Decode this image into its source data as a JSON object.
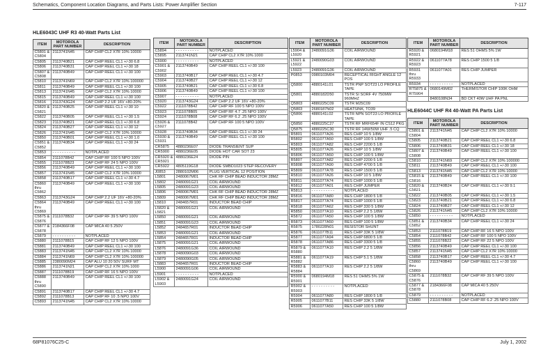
{
  "header": {
    "left": "Schematics, Component Location Diagrams, and Parts Lists: Power Amplifier Section",
    "right": "7-117"
  },
  "footer": {
    "left": "68P81076C25-C",
    "right": "July 1, 2002"
  },
  "columns": [
    "ITEM",
    "MOTOROLA PART NUMBER",
    "DESCRIPTION"
  ],
  "titles": {
    "r3": "HLE6043C UHF R3 40-Watt Parts List",
    "r4": "HLE6044C UHF R4 40-Watt PA Parts List"
  },
  "t1": [
    [
      "C5801 & C5804",
      "2113741N45",
      "CAP CHIP CL2 X7R 10% 10000"
    ],
    [
      "C5805",
      "2113740B21",
      "CAP CHIP REEL CL1 +/-30 6.8"
    ],
    [
      "C5806",
      "2113740B31",
      "CAP CHIP REEL CL1 +/-30 18"
    ],
    [
      "C5807 & C5808",
      "2113740B49",
      "CAP CHIP REEL CL1 +/-30 100"
    ],
    [
      "C5810",
      "2113741N69",
      "CAP CHIP CL2 X7R 10% 100000"
    ],
    [
      "C5811",
      "2113740B49",
      "CAP CHIP REEL CL1 +/-30 100"
    ],
    [
      "C5813",
      "2113741N45",
      "CAP CHIP CL2 X7R 10% 10000"
    ],
    [
      "C5815",
      "2113740B49",
      "CAP CHIP REEL CL1 +/-30 100"
    ],
    [
      "C5816",
      "2113743G24",
      "CAP CHIP 2.2 UF 16V +80-20%"
    ],
    [
      "C5820 & C5821",
      "2113740B25",
      "CAP CHIP REEL CL1 +/-30 10"
    ],
    [
      "C5822",
      "2113740B05",
      "CAP CHIP REEL CL1 +/-30 1.5"
    ],
    [
      "C5823",
      "2113740B21",
      "CAP CHIP REEL CL1 +/-30 6.8"
    ],
    [
      "C5824",
      "2113740B27",
      "CAP CHIP REEL CL1 +/-30 12"
    ],
    [
      "C5826",
      "2113741N45",
      "CAP CHIP CL2 X7R 10% 10000"
    ],
    [
      "C5850",
      "2113740B01",
      "CAP CHIP REEL CL1 +/-30 1.0"
    ],
    [
      "C5851 & C5852",
      "2113740B34",
      "CAP CHIP REEL CL1 +/-30 24"
    ],
    [
      "C5853",
      "- - - - - - - - - -",
      "NOTPLACED"
    ],
    [
      "C5854",
      "2111078B42",
      "CAP CHIP RF 100 5 NPO 100V"
    ],
    [
      "C5855",
      "2111078B23",
      "CAP CHIP RF 24 5 NPO 100V"
    ],
    [
      "C5856",
      "2113740B49",
      "CAP CHIP REEL CL1 +/-30 100"
    ],
    [
      "C5857",
      "2113741N45",
      "CAP CHIP CL2 X7R 10% 10000"
    ],
    [
      "C5858",
      "2113740B17",
      "CAP CHIP REEL CL1 +/-30 4.7"
    ],
    [
      "C5860 thru C5862",
      "2113740B49",
      "CAP CHIP REEL CL1 +/-30 100"
    ],
    [
      "C5863",
      "2113743G24",
      "CAP CHIP 2.2 UF 16V +80-20%"
    ],
    [
      "C5864 thru C5869",
      "2113740B49",
      "CAP CHIP REEL CL1 +/-30 100"
    ],
    [
      "C5875 & C5876",
      "2111078B32",
      "CAP CHIP RF 39 5 NPO 100V"
    ],
    [
      "C5877 & C5878",
      "2184366F08",
      "CAP MICA 40 5 250V"
    ],
    [
      "C5879",
      "- - - - - - - - - -",
      "NOTPLACED"
    ],
    [
      "C5880",
      "2111078B15",
      "CAP CHIP RF 12 5 NPO 100V"
    ],
    [
      "C5881",
      "2113740B49",
      "CAP CHIP REEL CL1 +/-30 100"
    ],
    [
      "C5883",
      "2113741N45",
      "CAP CHIP CL2 X7R 10% 10000"
    ],
    [
      "C5884",
      "2113741N69",
      "CAP CHIP CL2 X7R 10% 100000"
    ],
    [
      "C5885",
      "2380090M24",
      "CAP ALU 10 20 50V SURF MT"
    ],
    [
      "C5886",
      "2113741N21",
      "CAP CHIP CL2 X7R 10% 1000"
    ],
    [
      "C5887",
      "2111078B19",
      "CAP CHIP RF 16 5 NPO 100V"
    ],
    [
      "C5888 thru C5890",
      "2113740B49",
      "CAP CHIP REEL CL1 +/-30 100"
    ],
    [
      "C5891",
      "2113740B17",
      "CAP CHIP REEL CL1 +/-30 4.7"
    ],
    [
      "C5892",
      "2111078B13",
      "CAP CHIP RF 10 .5 NPO 100V"
    ],
    [
      "C5893",
      "2113741N45",
      "CAP CHIP CL2 X7R 10% 10000"
    ]
  ],
  "t2": [
    [
      "C5894",
      "- - - - - - - - - -",
      "NOTPLACED"
    ],
    [
      "C5895",
      "2113741N21",
      "CAP CHIP CL2 X7R 10% 1000"
    ],
    [
      "C5900",
      "- - - - - - - - - -",
      "NOTPLACED"
    ],
    [
      "C5901 & C5902",
      "2113740B49",
      "CAP CHIP REEL CL1 +/-30 100"
    ],
    [
      "C5903",
      "2113740B17",
      "CAP CHIP REEL CL1 +/-30 4.7"
    ],
    [
      "C5904",
      "2113740B27",
      "CAP CHIP REEL CL1 +/-30 12"
    ],
    [
      "C5905",
      "2113740B21",
      "CAP CHIP REEL CL1 +/-30 6.8"
    ],
    [
      "C5906",
      "2113740B49",
      "CAP CHIP REEL CL1 +/-30 100"
    ],
    [
      "C5907",
      "- - - - - - - - - -",
      "NOTPLACED"
    ],
    [
      "C5920",
      "2113743G24",
      "CAP CHIP 2.2 UF 16V +80-20%"
    ],
    [
      "C5922",
      "2111078B42",
      "CAP CHIP RF 100 5 NPO 100V"
    ],
    [
      "C5923",
      "2111078B05",
      "CAP CHIP RF 4.7 .25 NPO 100V"
    ],
    [
      "C5924",
      "2111078B08",
      "CAP CHIP RF 6.2 .25 NPO 100V"
    ],
    [
      "C5926 & C5927",
      "2111078B42",
      "CAP CHIP RF 100 5 NPO 100V"
    ],
    [
      "C5928",
      "2113740B34",
      "CAP CHIP REEL CL1 +/-30 24"
    ],
    [
      "C5930 & C5931",
      "2113740B49",
      "CAP CHIP REEL CL1 +/-30 100"
    ],
    [
      "CR5875",
      "4880236E07",
      "DIODE TRANSIENT SUP"
    ],
    [
      "CR5900",
      "4880236E05",
      "DIODE HOT CAR SOT 23"
    ],
    [
      "CR5920 & CR5921",
      "4880236E24",
      "DIODE PIN"
    ],
    [
      "CR5922",
      "4805119G18",
      "DIODE SMBD1023 STEP RECOVERY"
    ],
    [
      "J0853",
      "2880102M06",
      "PLUG VERTICAL 12 POSITION"
    ],
    [
      "L5801",
      "2480067M01",
      "CHK RF CHIP BEAD INDUCTOR 28MZ"
    ],
    [
      "L5802",
      "2480091G21",
      "COIL AIRWOUND"
    ],
    [
      "L5805",
      "2480091G23",
      "COIL AIRWOUND"
    ],
    [
      "L5806",
      "2480067M01",
      "CHK RF CHIP BEAD INDUCTOR 28MZ"
    ],
    [
      "L5809",
      "2480067M01",
      "CHK RF CHIP BEAD INDUCTOR 28MZ"
    ],
    [
      "L5810",
      "2484657R01",
      "INDUCTOR BEAD CHIP"
    ],
    [
      "L5820 & L5821",
      "2480091G21",
      "COIL AIRWOUND"
    ],
    [
      "L5850",
      "2480091G21",
      "COIL AIRWOUND"
    ],
    [
      "L5851",
      "2480091G23",
      "COIL AIRWOUND"
    ],
    [
      "L5852",
      "2484657R01",
      "INDUCTOR BEAD CHIP"
    ],
    [
      "L5853",
      "2480091G21",
      "COIL AIRWOUND"
    ],
    [
      "L5854",
      "2484657R01",
      "INDUCTOR BEAD CHIP"
    ],
    [
      "L5875",
      "2480091G21",
      "COIL AIRWOUND"
    ],
    [
      "L5876",
      "2480091G36",
      "COIL AIRWOUND"
    ],
    [
      "L5878",
      "2480090G03",
      "COIL AIRWOUND"
    ],
    [
      "L5879",
      "2480090G05",
      "COIL AIRWOUND"
    ],
    [
      "L5883",
      "2484657R01",
      "INDUCTOR BEAD CHIP"
    ],
    [
      "L5900",
      "2480091G06",
      "COIL AIRWOUND"
    ],
    [
      "L5901",
      "- - - - - - - - - -",
      "NOTPLACED"
    ],
    [
      "L5902 & L5903",
      "2480091G24",
      "COIL AIRWOUND"
    ]
  ],
  "t3": [
    [
      "L5904 & L5920",
      "2480091G36",
      "COIL AIRWOUND"
    ],
    [
      "L5921 & L5922",
      "2480090G03",
      "COIL AIRWOUND"
    ],
    [
      "L5923",
      "2480091G36",
      "COIL AIRWOUND"
    ],
    [
      "P0853",
      "0980103M04",
      "RECEPTICAL RIGHT ANGLE 12 POS"
    ],
    [
      "Q5800",
      "4880141L01",
      "TSTR PNP SOT23 LO PROFILE TAPE"
    ],
    [
      "Q5801",
      "4880182D50",
      "TSTR SI SORF 4V 750MW 960MHZ"
    ],
    [
      "Q5803",
      "4880225C09",
      "TSTR M25C09"
    ],
    [
      "Q5803",
      "2680187N02",
      "HEATSINK, TO39"
    ],
    [
      "Q5806",
      "4880141L02",
      "TSTR NPN SOT23 LO PROFILE TAPE"
    ],
    [
      "Q5850",
      "4880225C27",
      "TSTR RF MRF654F IN CS12 PKG"
    ],
    [
      "Q5875",
      "4880225C30",
      "TSTR RF 14W/50W UHF .5 CQ"
    ],
    [
      "R5801",
      "0611077A26",
      "RES CHIP 10 5 1/8W"
    ],
    [
      "R5802",
      "0611077A50",
      "RES CHIP 100 5 1/8W"
    ],
    [
      "R5803",
      "0611077A82",
      "RES CHIP 2200 5 1/8"
    ],
    [
      "R5805",
      "0611077A26",
      "RES CHIP 10 5 1/8W"
    ],
    [
      "R5806",
      "0611077A50",
      "RES CHIP 100 5 1/8W"
    ],
    [
      "R5807",
      "0611077A82",
      "RES CHIP 2200 5 1/8"
    ],
    [
      "R5808",
      "0611077A90",
      "RES CHIP 4700 5 1/8"
    ],
    [
      "R5809",
      "0611077A78",
      "RES CHIP 1500 5 1/8"
    ],
    [
      "R5810",
      "0611077A26",
      "RES CHIP 10 5 1/8W"
    ],
    [
      "R5811",
      "0611077A74",
      "RES CHIP 1000 5 1/8"
    ],
    [
      "R5812",
      "0611077A01",
      "RES CHIP JUMPER"
    ],
    [
      "R5813",
      "- - - - - - - - - -",
      "NOTPLACED"
    ],
    [
      "R5816",
      "0611077A80",
      "RES CHIP 1800 5 1/8"
    ],
    [
      "R5817",
      "0611077A74",
      "RES CHIP 1000 5 1/8"
    ],
    [
      "R5818",
      "0611077A62",
      "RES CHIP 330 5 1/8W"
    ],
    [
      "R5850",
      "0611077A10",
      "RES CHIP 2.2 5 1/8W"
    ],
    [
      "R5872",
      "0611077A50",
      "RES CHIP 100 5 1/8W"
    ],
    [
      "R5873",
      "0611077A50",
      "RES CHIP 100 5 1/8W"
    ],
    [
      "R5875",
      "1780228N01",
      "RESISTOR SHUNT"
    ],
    [
      "R5876",
      "0611077B11",
      "RES CHIP 33K 5 1/8W"
    ],
    [
      "R5877",
      "0611077A94",
      "RES CHIP 6800 5 1/8"
    ],
    [
      "R5878",
      "0611077A86",
      "RES CHIP 3300 5 1/8"
    ],
    [
      "R5879 & R5880",
      "0611077A10",
      "RES CHIP 2.2 5 1/8W"
    ],
    [
      "R5881 & R5882",
      "0611077A19",
      "RES CHIP 5.1 5 1/8W"
    ],
    [
      "R5883 & R5884",
      "0611077A10",
      "RES CHIP 2.2 5 1/8W"
    ],
    [
      "R5900 & R5901",
      "0680194M18",
      "RES 51 OHMS 5% 1W"
    ],
    [
      "R5902 & R5903",
      "- - - - - - - - - -",
      "NOTPLACED"
    ],
    [
      "R5904",
      "0611077A80",
      "RES CHIP 1800 5 1/8"
    ],
    [
      "R5905",
      "0611077B11",
      "RES CHIP 33K 5 1/8W"
    ],
    [
      "R5906",
      "0611077A50",
      "RES CHIP 100 5 1/8W"
    ]
  ],
  "t4": [
    [
      "R5920 & R5921",
      "0680194M18",
      "RES 51 OHMS 5% 1W"
    ],
    [
      "R5922 & R5923",
      "0611077A78",
      "RES CHIP 1500 5 1/8"
    ],
    [
      "R5931 thru R5933",
      "0611077A01",
      "RES CHIP JUMPER"
    ],
    [
      "R5934",
      "- - - - - - - - - -",
      "NOTPLACED"
    ],
    [
      "RT5875 & RT5904",
      "0680149M02",
      "THERMISTOR CHIP 100K OHM"
    ],
    [
      "",
      "8480108N34",
      "BD CKT 40W UHF PA PNL"
    ]
  ],
  "t5": [
    [
      "C5801 & C5804",
      "2113741N45",
      "CAP CHIP CL2 X7R 10% 10000"
    ],
    [
      "C5805",
      "2113740B21",
      "CAP CHIP REEL CL1 +/-30 6.8"
    ],
    [
      "C5806",
      "2113740B31",
      "CAP CHIP REEL CL1 +/-30 18"
    ],
    [
      "C5807 & C5808",
      "2113740B49",
      "CAP CHIP REEL CL1 +/-30 100"
    ],
    [
      "C5810",
      "2113741N69",
      "CAP CHIP CL2 X7R 10% 100000"
    ],
    [
      "C5811",
      "2113740B49",
      "CAP CHIP REEL CL1 +/-30 100"
    ],
    [
      "C5813",
      "2113741N45",
      "CAP CHIP CL2 X7R 10% 10000"
    ],
    [
      "C5815 & C5816",
      "2113740B49",
      "CAP CHIP REEL CL1 +/-30 100"
    ],
    [
      "C5820 & C5821",
      "2113740B24",
      "CAP CHIP REEL CL1 +/-30 9.1"
    ],
    [
      "C5822",
      "2113740B05",
      "CAP CHIP REEL CL1 +/-30 1.5"
    ],
    [
      "C5823",
      "2113740B21",
      "CAP CHIP REEL CL1 +/-30 6.8"
    ],
    [
      "C5824",
      "2113740B27",
      "CAP CHIP REEL CL1 +/-30 12"
    ],
    [
      "C5826",
      "2113741N45",
      "CAP CHIP CL2 X7R 10% 10000"
    ],
    [
      "C5850",
      "- - - - - - - - - -",
      "NOTPLACED"
    ],
    [
      "C5851 & C5852",
      "2113740B34",
      "CAP CHIP REEL CL1 +/-30 24"
    ],
    [
      "C5853",
      "2111078B19",
      "CAP CHIP RF 16 5 NPO 100V"
    ],
    [
      "C5854",
      "2111078B42",
      "CAP CHIP RF 100 5 NPO 100V"
    ],
    [
      "C5855",
      "2111078B22",
      "CAP CHIP RF 22 5 NPO 100V"
    ],
    [
      "C5856",
      "2113740B49",
      "CAP CHIP REEL CL1 +/-30 100"
    ],
    [
      "C5857",
      "2113741N45",
      "CAP CHIP CL2 X7R 10% 10000"
    ],
    [
      "C5858",
      "2113740B17",
      "CAP CHIP REEL CL1 +/-30 4.7"
    ],
    [
      "C5860 thru C5869",
      "2113740B49",
      "CAP CHIP REEL CL1 +/-30 100"
    ],
    [
      "C5875 & C5876",
      "2111078B32",
      "CAP CHIP RF 39 5 NPO 100V"
    ],
    [
      "C5877 & C5878",
      "2184366F08",
      "CAP MICA 40 5 250V"
    ],
    [
      "C5879",
      "- - - - - - - - - -",
      "NOTPLACED"
    ],
    [
      "C5880",
      "2111078B08",
      "CAP CHIP RF 6.2 .25 NPO 100V"
    ]
  ]
}
